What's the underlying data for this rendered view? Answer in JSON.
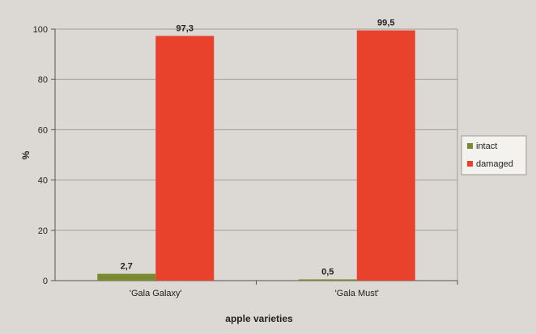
{
  "chart_data": {
    "type": "bar",
    "title": "",
    "xlabel": "apple varieties",
    "ylabel": "%",
    "ylim": [
      0,
      100
    ],
    "yticks": [
      "0",
      "20",
      "40",
      "60",
      "80",
      "100"
    ],
    "ytick_values": [
      0,
      20,
      40,
      60,
      80,
      100
    ],
    "categories": [
      "'Gala Galaxy'",
      "'Gala Must'"
    ],
    "series": [
      {
        "name": "intact",
        "color": "#7a8a2e",
        "values": [
          2.7,
          0.5
        ],
        "labels": [
          "2,7",
          "0,5"
        ]
      },
      {
        "name": "damaged",
        "color": "#e8412c",
        "values": [
          97.3,
          99.5
        ],
        "labels": [
          "97,3",
          "99,5"
        ]
      }
    ],
    "grid": true,
    "legend_position": "right"
  }
}
